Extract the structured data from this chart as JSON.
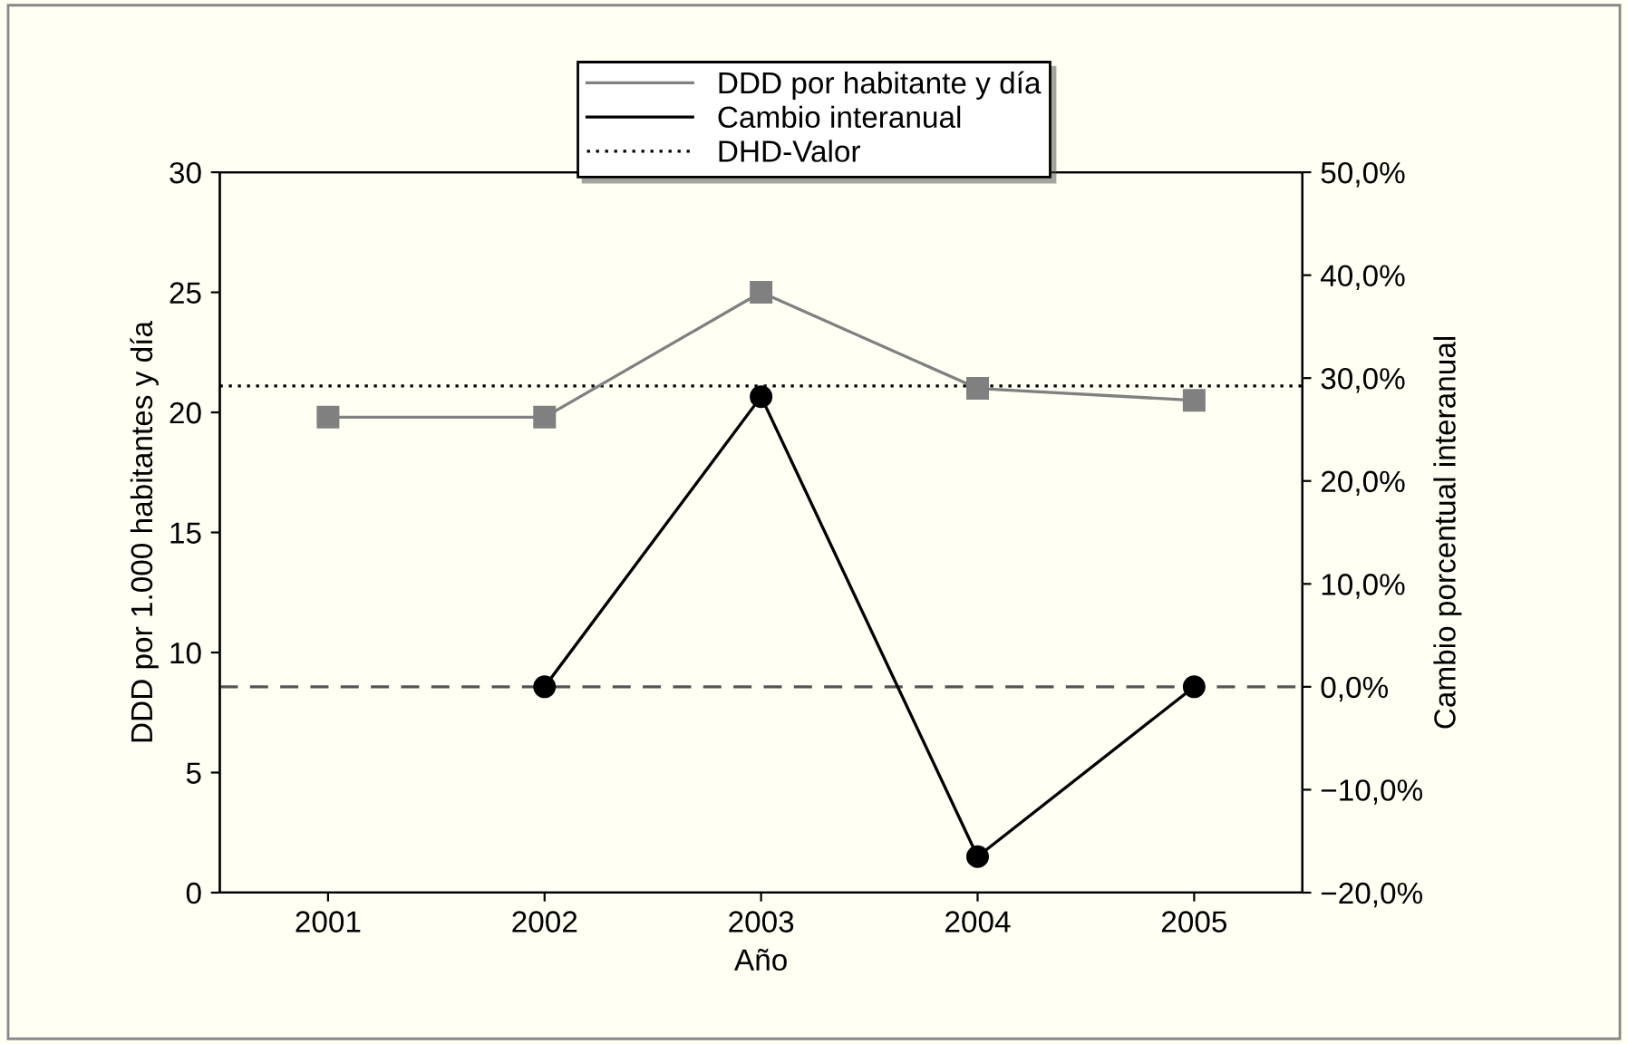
{
  "chart_data": {
    "type": "line",
    "xlabel": "Año",
    "ylabel": "DDD por 1.000 habitantes y día",
    "y2label": "Cambio porcentual interanual",
    "categories": [
      "2001",
      "2002",
      "2003",
      "2004",
      "2005"
    ],
    "series": [
      {
        "name": "DDD por habitante y día",
        "color": "#808080",
        "marker": "square",
        "values": [
          19.8,
          19.8,
          25.0,
          21.0,
          20.5
        ]
      },
      {
        "name": "Cambio interanual",
        "color": "#000000",
        "marker": "circle",
        "axis": "y2",
        "values": [
          null,
          0,
          28.2,
          -16.5,
          0
        ]
      }
    ],
    "ylim": [
      0,
      30
    ],
    "yticks": [
      0,
      5,
      10,
      15,
      20,
      25,
      30
    ],
    "y2lim": [
      -20,
      50
    ],
    "y2ticks": [
      {
        "value": -20,
        "label": "−20,0%"
      },
      {
        "value": -10,
        "label": "−10,0%"
      },
      {
        "value": 0,
        "label": "0,0%"
      },
      {
        "value": 10,
        "label": "10,0%"
      },
      {
        "value": 20,
        "label": "20,0%"
      },
      {
        "value": 30,
        "label": "30,0%"
      },
      {
        "value": 40,
        "label": "40,0%"
      },
      {
        "value": 50,
        "label": "50,0%"
      }
    ],
    "ref_lines": [
      {
        "axis": "y",
        "value": 21.1,
        "label": "DHD-Valor",
        "color": "#000000",
        "line_style": "dotted"
      },
      {
        "axis": "y2",
        "value": 0,
        "color": "#555555",
        "line_style": "dashed"
      }
    ],
    "legend": "top",
    "grid": false
  }
}
